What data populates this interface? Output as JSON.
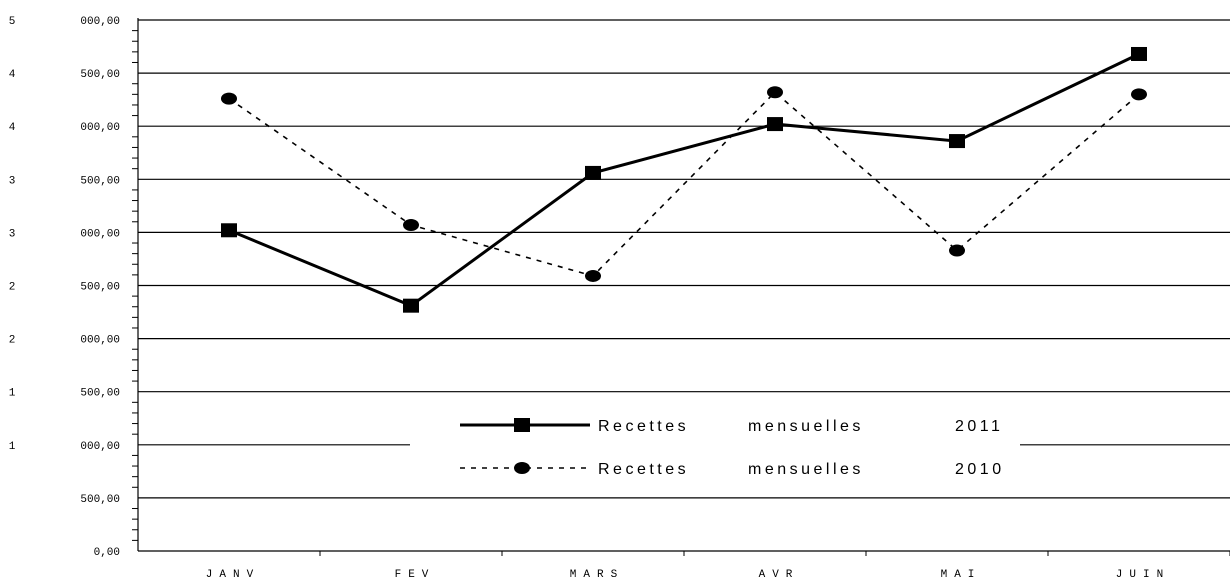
{
  "chart_data": {
    "type": "line",
    "categories": [
      "JANV",
      "FEV",
      "MARS",
      "AVR",
      "MAI",
      "JUIN"
    ],
    "ylim": [
      0,
      5000
    ],
    "y_ticks": [
      0,
      500,
      1000,
      1500,
      2000,
      2500,
      3000,
      3500,
      4000,
      4500,
      5000
    ],
    "y_tick_labels": [
      [
        "",
        "0,00"
      ],
      [
        "",
        "500,00"
      ],
      [
        "1",
        "000,00"
      ],
      [
        "1",
        "500,00"
      ],
      [
        "2",
        "000,00"
      ],
      [
        "2",
        "500,00"
      ],
      [
        "3",
        "000,00"
      ],
      [
        "3",
        "500,00"
      ],
      [
        "4",
        "000,00"
      ],
      [
        "4",
        "500,00"
      ],
      [
        "5",
        "000,00"
      ]
    ],
    "grid": true,
    "legend_position": "lower-center",
    "series": [
      {
        "name": "Recettes mensuelles 2011",
        "values": [
          3020,
          2310,
          3560,
          4020,
          3860,
          4680
        ],
        "style": "solid",
        "marker": "square",
        "color": "#000000"
      },
      {
        "name": "Recettes mensuelles 2010",
        "values": [
          4260,
          3070,
          2590,
          4320,
          2830,
          4300
        ],
        "style": "dashed",
        "marker": "circle",
        "color": "#000000"
      }
    ]
  }
}
